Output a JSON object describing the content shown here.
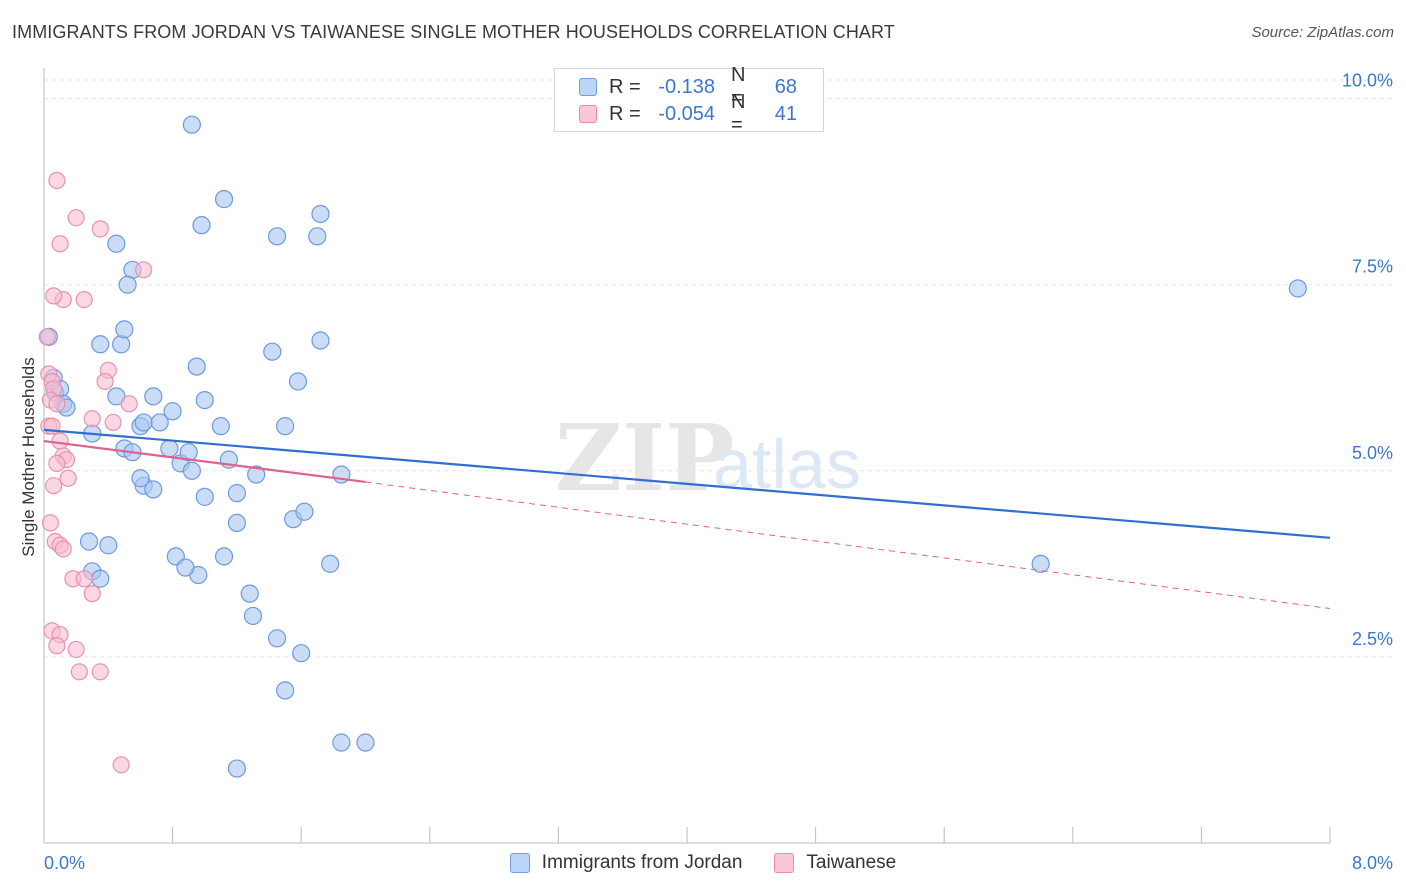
{
  "title": "IMMIGRANTS FROM JORDAN VS TAIWANESE SINGLE MOTHER HOUSEHOLDS CORRELATION CHART",
  "source": "Source: ZipAtlas.com",
  "watermark": {
    "zip": "ZIP",
    "atlas": "atlas"
  },
  "legend": {
    "r_label": "R =",
    "n_label": "N =",
    "series": [
      {
        "r": "-0.138",
        "n": "68",
        "fill": "#bcd4f5",
        "stroke": "#6f9fe0"
      },
      {
        "r": "-0.054",
        "n": "41",
        "fill": "#f9c8d8",
        "stroke": "#e88aaa"
      }
    ]
  },
  "bottom_legend": [
    "Immigrants from Jordan",
    "Taiwanese"
  ],
  "colors": {
    "blue_fill": "#a9c6f0",
    "blue_stroke": "#6b9ae0",
    "blue_line": "#2f6fd0",
    "pink_fill": "#f7bdd0",
    "pink_stroke": "#e792b0",
    "pink_line": "#e0608f",
    "tick_label": "#3a78d0",
    "grid": "#e3e3e3"
  },
  "chart_data": {
    "type": "scatter",
    "title": "IMMIGRANTS FROM JORDAN VS TAIWANESE SINGLE MOTHER HOUSEHOLDS CORRELATION CHART",
    "xlabel": "",
    "ylabel": "Single Mother Households",
    "xlim": [
      0,
      8
    ],
    "ylim": [
      0,
      10.25
    ],
    "x_tick_labels": [
      {
        "value": 0,
        "label": "0.0%"
      },
      {
        "value": 8,
        "label": "8.0%"
      }
    ],
    "y_tick_labels": [
      {
        "value": 2.5,
        "label": "2.5%"
      },
      {
        "value": 5.0,
        "label": "5.0%"
      },
      {
        "value": 7.5,
        "label": "7.5%"
      },
      {
        "value": 10.0,
        "label": "10.0%"
      }
    ],
    "grid": true,
    "legend_position": "top-center",
    "series": [
      {
        "name": "Immigrants from Jordan",
        "points": [
          [
            0.03,
            6.8
          ],
          [
            0.06,
            6.25
          ],
          [
            0.07,
            6.05
          ],
          [
            0.1,
            6.1
          ],
          [
            0.12,
            5.9
          ],
          [
            0.14,
            5.85
          ],
          [
            0.3,
            5.5
          ],
          [
            0.35,
            6.7
          ],
          [
            0.45,
            6.0
          ],
          [
            0.5,
            5.3
          ],
          [
            0.6,
            5.6
          ],
          [
            0.62,
            5.65
          ],
          [
            0.48,
            6.7
          ],
          [
            0.68,
            6.0
          ],
          [
            0.55,
            5.25
          ],
          [
            0.8,
            5.8
          ],
          [
            0.78,
            5.3
          ],
          [
            0.85,
            5.1
          ],
          [
            0.92,
            5.0
          ],
          [
            0.95,
            6.4
          ],
          [
            1.0,
            5.95
          ],
          [
            0.9,
            5.25
          ],
          [
            0.62,
            4.8
          ],
          [
            0.68,
            4.75
          ],
          [
            0.4,
            4.0
          ],
          [
            0.3,
            3.65
          ],
          [
            0.35,
            3.55
          ],
          [
            0.28,
            4.05
          ],
          [
            0.82,
            3.85
          ],
          [
            0.96,
            3.6
          ],
          [
            1.12,
            3.85
          ],
          [
            1.2,
            4.3
          ],
          [
            1.28,
            3.35
          ],
          [
            1.3,
            3.05
          ],
          [
            1.45,
            2.75
          ],
          [
            1.2,
            4.7
          ],
          [
            1.15,
            5.15
          ],
          [
            1.85,
            4.95
          ],
          [
            1.5,
            5.6
          ],
          [
            1.58,
            6.2
          ],
          [
            1.72,
            6.75
          ],
          [
            1.42,
            6.6
          ],
          [
            1.32,
            4.95
          ],
          [
            1.0,
            4.65
          ],
          [
            1.1,
            5.6
          ],
          [
            1.55,
            4.35
          ],
          [
            1.62,
            4.45
          ],
          [
            1.78,
            3.75
          ],
          [
            1.6,
            2.55
          ],
          [
            1.5,
            2.05
          ],
          [
            1.85,
            1.35
          ],
          [
            2.0,
            1.35
          ],
          [
            1.2,
            1.0
          ],
          [
            1.12,
            8.65
          ],
          [
            0.98,
            8.3
          ],
          [
            0.92,
            9.65
          ],
          [
            0.55,
            7.7
          ],
          [
            0.45,
            8.05
          ],
          [
            0.52,
            7.5
          ],
          [
            1.45,
            8.15
          ],
          [
            1.7,
            8.15
          ],
          [
            1.72,
            8.45
          ],
          [
            0.72,
            5.65
          ],
          [
            0.5,
            6.9
          ],
          [
            7.8,
            7.45
          ],
          [
            6.2,
            3.75
          ],
          [
            0.88,
            3.7
          ],
          [
            0.6,
            4.9
          ]
        ],
        "trend": {
          "x": [
            0.0,
            8.0
          ],
          "y": [
            5.55,
            4.1
          ]
        }
      },
      {
        "name": "Taiwanese",
        "points": [
          [
            0.02,
            6.8
          ],
          [
            0.03,
            6.3
          ],
          [
            0.05,
            6.2
          ],
          [
            0.06,
            6.1
          ],
          [
            0.04,
            5.95
          ],
          [
            0.08,
            5.9
          ],
          [
            0.03,
            5.6
          ],
          [
            0.05,
            5.6
          ],
          [
            0.1,
            5.4
          ],
          [
            0.12,
            5.2
          ],
          [
            0.14,
            5.15
          ],
          [
            0.08,
            5.1
          ],
          [
            0.15,
            4.9
          ],
          [
            0.06,
            4.8
          ],
          [
            0.04,
            4.3
          ],
          [
            0.07,
            4.05
          ],
          [
            0.1,
            4.0
          ],
          [
            0.12,
            3.95
          ],
          [
            0.18,
            3.55
          ],
          [
            0.25,
            3.55
          ],
          [
            0.3,
            3.35
          ],
          [
            0.05,
            2.85
          ],
          [
            0.1,
            2.8
          ],
          [
            0.08,
            2.65
          ],
          [
            0.2,
            2.6
          ],
          [
            0.22,
            2.3
          ],
          [
            0.35,
            2.3
          ],
          [
            0.4,
            6.35
          ],
          [
            0.38,
            6.2
          ],
          [
            0.3,
            5.7
          ],
          [
            0.43,
            5.65
          ],
          [
            0.53,
            5.9
          ],
          [
            0.12,
            7.3
          ],
          [
            0.06,
            7.35
          ],
          [
            0.25,
            7.3
          ],
          [
            0.1,
            8.05
          ],
          [
            0.35,
            8.25
          ],
          [
            0.2,
            8.4
          ],
          [
            0.08,
            8.9
          ],
          [
            0.62,
            7.7
          ],
          [
            0.48,
            1.05
          ]
        ],
        "trend": {
          "x": [
            0.0,
            2.0
          ],
          "y": [
            5.4,
            4.85
          ]
        },
        "trend_extension": {
          "x": [
            2.0,
            8.0
          ],
          "y": [
            4.85,
            3.15
          ]
        }
      }
    ]
  }
}
